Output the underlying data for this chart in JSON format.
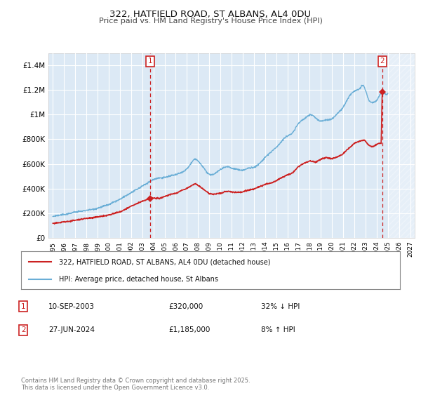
{
  "title1": "322, HATFIELD ROAD, ST ALBANS, AL4 0DU",
  "title2": "Price paid vs. HM Land Registry's House Price Index (HPI)",
  "background_color": "#ffffff",
  "plot_bg_color": "#dce9f5",
  "hpi_color": "#6aaed6",
  "price_color": "#cc2222",
  "marker1_date_x": 2003.72,
  "marker1_price": 320000,
  "marker1_label": "1",
  "marker2_date_x": 2024.49,
  "marker2_price": 1185000,
  "marker2_label": "2",
  "annotation1": [
    "1",
    "10-SEP-2003",
    "£320,000",
    "32% ↓ HPI"
  ],
  "annotation2": [
    "2",
    "27-JUN-2024",
    "£1,185,000",
    "8% ↑ HPI"
  ],
  "legend_label1": "322, HATFIELD ROAD, ST ALBANS, AL4 0DU (detached house)",
  "legend_label2": "HPI: Average price, detached house, St Albans",
  "footer": "Contains HM Land Registry data © Crown copyright and database right 2025.\nThis data is licensed under the Open Government Licence v3.0.",
  "ylim": [
    0,
    1500000
  ],
  "xlim_start": 1994.6,
  "xlim_end": 2027.4,
  "future_cutoff": 2025.0,
  "yticks": [
    0,
    200000,
    400000,
    600000,
    800000,
    1000000,
    1200000,
    1400000
  ],
  "ytick_labels": [
    "£0",
    "£200K",
    "£400K",
    "£600K",
    "£800K",
    "£1M",
    "£1.2M",
    "£1.4M"
  ],
  "xticks": [
    1995,
    1996,
    1997,
    1998,
    1999,
    2000,
    2001,
    2002,
    2003,
    2004,
    2005,
    2006,
    2007,
    2008,
    2009,
    2010,
    2011,
    2012,
    2013,
    2014,
    2015,
    2016,
    2017,
    2018,
    2019,
    2020,
    2021,
    2022,
    2023,
    2024,
    2025,
    2026,
    2027
  ]
}
